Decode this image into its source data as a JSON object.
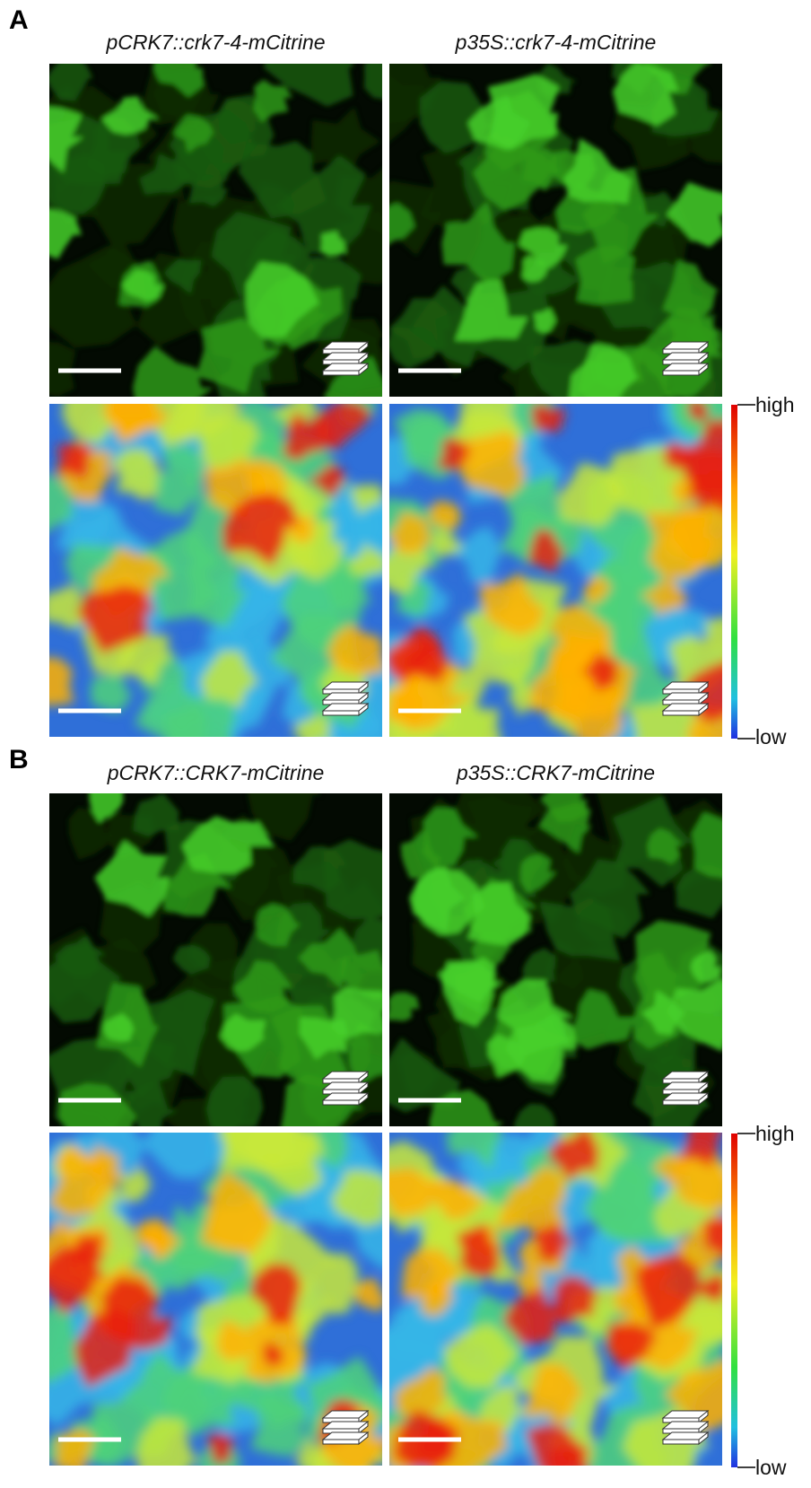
{
  "panels": [
    {
      "label": "A",
      "columns": [
        "pCRK7::crk7-4-mCitrine",
        "p35S::crk7-4-mCitrine"
      ],
      "scale": {
        "high": "high",
        "low": "low"
      }
    },
    {
      "label": "B",
      "columns": [
        "pCRK7::CRK7-mCitrine",
        "p35S::CRK7-mCitrine"
      ],
      "scale": {
        "high": "high",
        "low": "low"
      }
    }
  ]
}
